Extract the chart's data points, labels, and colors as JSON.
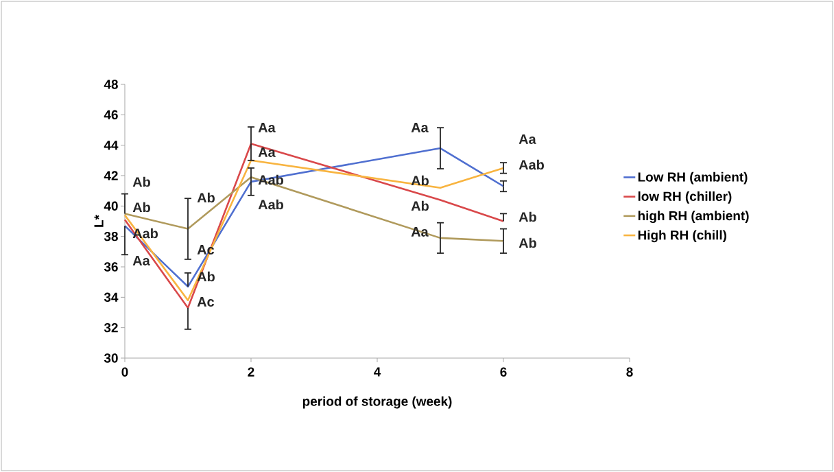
{
  "chart_data": {
    "type": "line",
    "xlabel": "period of storage (week)",
    "ylabel": "L*",
    "x": [
      0,
      1,
      2,
      5,
      6
    ],
    "series": [
      {
        "name": "Low RH (ambient)",
        "color": "#4f6fd0",
        "values": [
          38.7,
          34.7,
          41.6,
          43.8,
          41.3
        ],
        "errors": [
          [
            36.8,
            38.7
          ],
          [
            34.7,
            35.6
          ],
          0.9,
          1.35,
          0.35
        ]
      },
      {
        "name": "low RH (chiller)",
        "color": "#d9484a",
        "values": [
          39.1,
          33.3,
          44.1,
          40.4,
          39.0
        ],
        "errors": [
          null,
          [
            31.9,
            33.3
          ],
          1.1,
          null,
          [
            39.0,
            39.5
          ]
        ]
      },
      {
        "name": "high RH (ambient)",
        "color": "#b09a5c",
        "values": [
          39.5,
          38.5,
          41.9,
          37.9,
          37.7
        ],
        "errors": [
          [
            39.5,
            40.8
          ],
          2.0,
          null,
          1.0,
          0.8
        ]
      },
      {
        "name": "High RH (chill)",
        "color": "#f8b440",
        "values": [
          39.4,
          33.8,
          43.0,
          41.2,
          42.5
        ],
        "errors": [
          null,
          null,
          null,
          null,
          0.35
        ]
      }
    ],
    "xlim": [
      0,
      8
    ],
    "xticks": [
      0,
      2,
      4,
      6,
      8
    ],
    "ylim": [
      30,
      48
    ],
    "yticks": [
      30,
      32,
      34,
      36,
      38,
      40,
      42,
      44,
      46,
      48
    ],
    "grid": false,
    "legend": "right",
    "marker": "none",
    "line_style": "solid",
    "annotations": [
      "Ab",
      "Ab",
      "Aab",
      "Aa",
      "Ab",
      "Ac",
      "Ab",
      "Ac",
      "Aa",
      "Aa",
      "Aab",
      "Aab",
      "Aa",
      "Ab",
      "Ab",
      "Aa",
      "Aa",
      "Aab",
      "Ab",
      "Ab"
    ]
  }
}
